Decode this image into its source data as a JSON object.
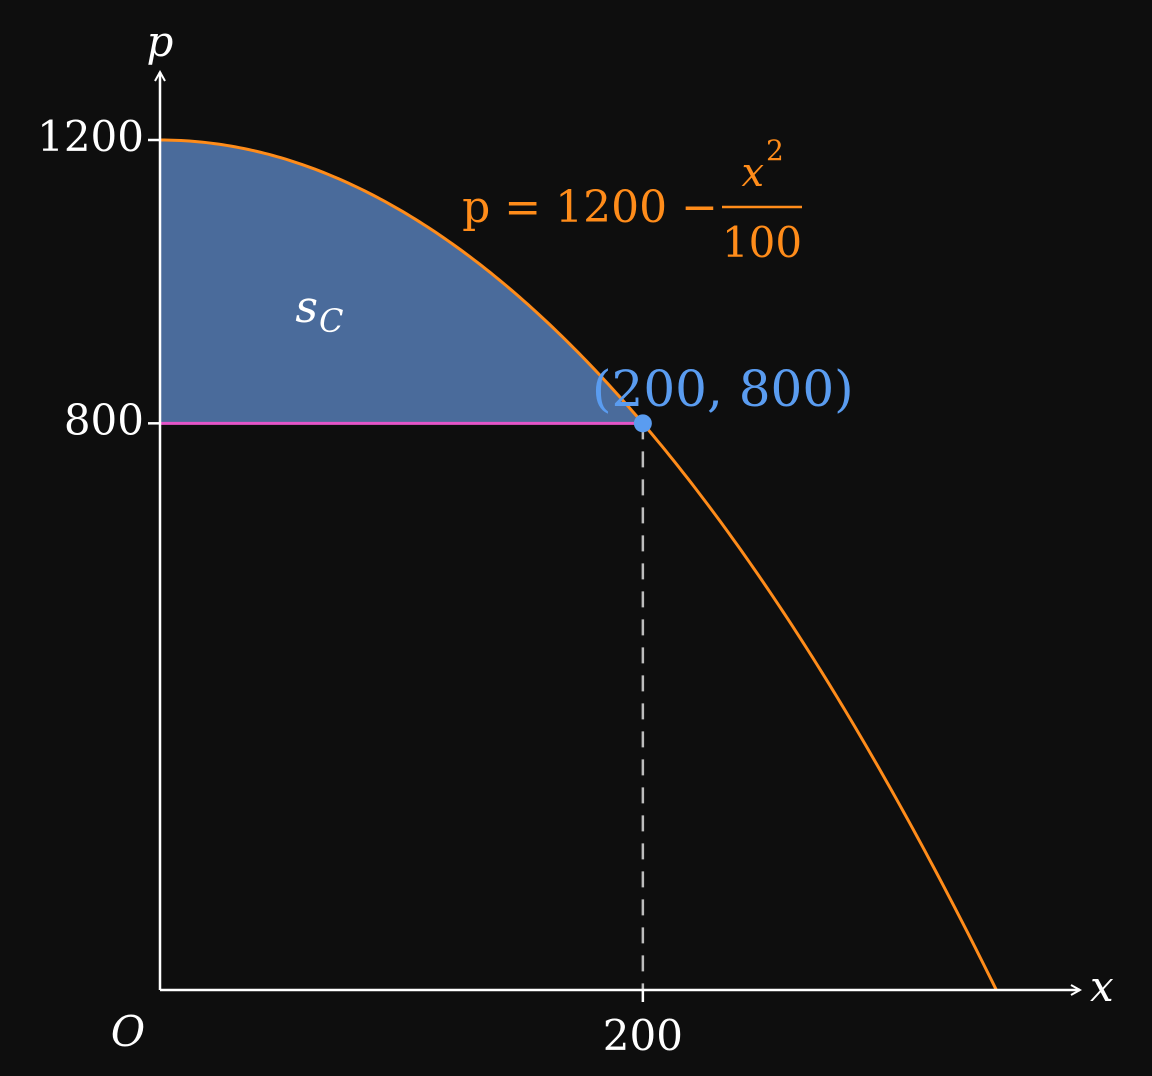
{
  "colors": {
    "background": "#0e0e0e",
    "axis": "#ffffff",
    "curve": "#ff8c1a",
    "fill": "#4a6b9b",
    "hline": "#e455c8",
    "point": "#5a9cf0",
    "dashed": "#bdbdbd",
    "text": "#ffffff"
  },
  "chart_data": {
    "type": "line",
    "xlabel": "x",
    "ylabel": "p",
    "origin_label": "O",
    "xlim": [
      0,
      350
    ],
    "ylim": [
      0,
      1200
    ],
    "x_ticks": [
      {
        "value": 200,
        "label": "200"
      }
    ],
    "y_ticks": [
      {
        "value": 800,
        "label": "800"
      },
      {
        "value": 1200,
        "label": "1200"
      }
    ],
    "curve": {
      "formula": "p = 1200 - x^2/100",
      "label_lhs": "p = 1200 − ",
      "label_num": "x",
      "label_sup": "2",
      "label_den": "100",
      "x_end": 346.4
    },
    "shaded_region": {
      "label": "s",
      "label_sub": "C",
      "x_from": 0,
      "x_to": 200,
      "p_floor": 800
    },
    "point": {
      "x": 200,
      "y": 800,
      "label": "(200, 800)"
    },
    "hline_y": 800
  }
}
